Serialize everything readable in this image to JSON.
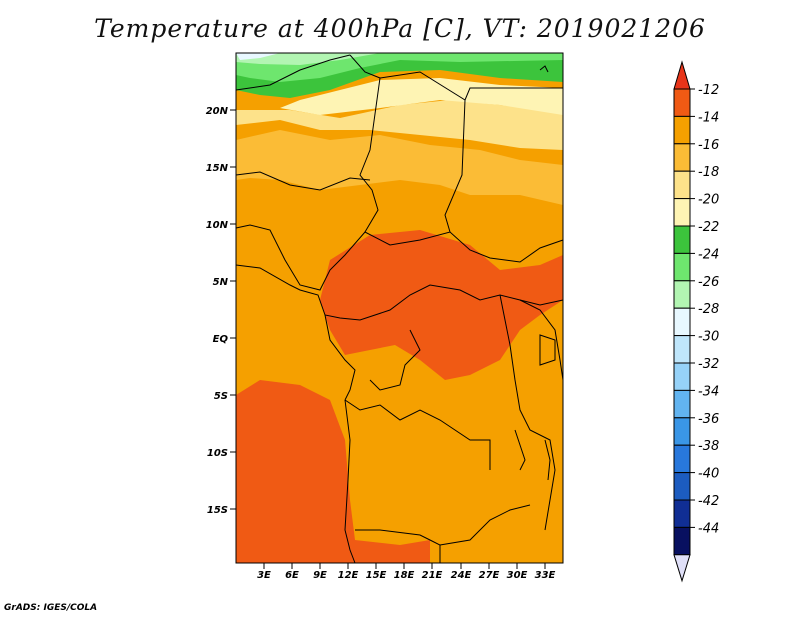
{
  "title": "Temperature at 400hPa [C], VT: 2019021206",
  "footer": "GrADS: IGES/COLA",
  "map": {
    "x_ticks": [
      "3E",
      "6E",
      "9E",
      "12E",
      "15E",
      "18E",
      "21E",
      "24E",
      "27E",
      "30E",
      "33E"
    ],
    "y_ticks": [
      "20N",
      "15N",
      "10N",
      "5N",
      "EQ",
      "5S",
      "10S",
      "15S"
    ]
  },
  "colorbar": {
    "levels": [
      "-12",
      "-14",
      "-16",
      "-18",
      "-20",
      "-22",
      "-24",
      "-26",
      "-28",
      "-30",
      "-32",
      "-34",
      "-36",
      "-38",
      "-40",
      "-42",
      "-44"
    ],
    "colors": [
      "#e8351a",
      "#f05a14",
      "#f5a000",
      "#fbbc36",
      "#fde28a",
      "#fef4b4",
      "#3cc43c",
      "#6ee66e",
      "#b2f5b2",
      "#e8f8ff",
      "#bfe6fb",
      "#96d2f8",
      "#62b4f0",
      "#3a96e6",
      "#2878dc",
      "#1c5cc0",
      "#102e94",
      "#081060",
      "#e0e0f8"
    ]
  },
  "legend_colors": {
    "warmest": "#f05a14",
    "warm": "#f5a000",
    "mild": "#fbbc36",
    "cool": "#fde28a",
    "pale": "#fef4b4",
    "green1": "#3cc43c",
    "green2": "#6ee66e",
    "green3": "#b2f5b2"
  }
}
